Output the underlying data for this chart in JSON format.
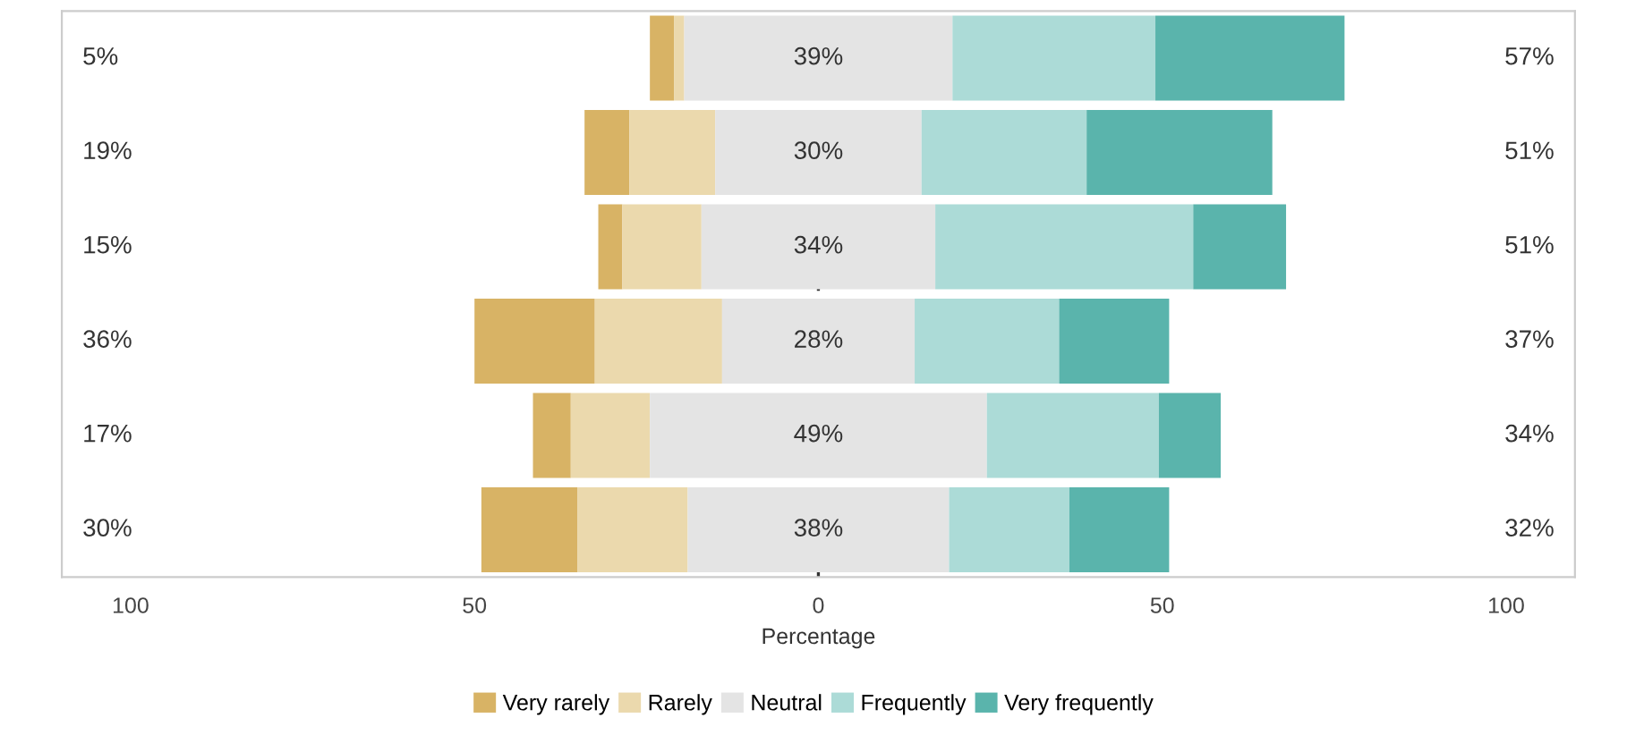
{
  "chart_data": {
    "type": "bar",
    "orientation": "horizontal",
    "xlabel": "Percentage",
    "categories": [
      null,
      null,
      null,
      null,
      null,
      null
    ],
    "series": [
      {
        "name": "Very rarely",
        "color": "#d8b365",
        "values": [
          3.5,
          6.5,
          3.5,
          17.5,
          5.5,
          14
        ],
        "base": [
          -24.5,
          -34,
          -32,
          -50,
          -41.5,
          -49
        ]
      },
      {
        "name": "Rarely",
        "color": "#ebd9ad",
        "values": [
          1.5,
          12.5,
          11.5,
          18.5,
          11.5,
          16
        ],
        "base": [
          -21,
          -27.5,
          -28.5,
          -32.5,
          -36,
          -35
        ]
      },
      {
        "name": "Neutral",
        "color": "#e4e4e4",
        "values": [
          39,
          30,
          34,
          28,
          49,
          38
        ],
        "base": [
          -19.5,
          -15,
          -17,
          -14,
          -24.5,
          -19
        ],
        "value_labels": [
          "39%",
          "30%",
          "34%",
          "28%",
          "49%",
          "38%"
        ]
      },
      {
        "name": "Frequently",
        "color": "#acdbd7",
        "values": [
          29.5,
          24,
          37.5,
          21,
          25,
          17.5
        ],
        "base": [
          19.5,
          15,
          17,
          14,
          24.5,
          19
        ]
      },
      {
        "name": "Very frequently",
        "color": "#5ab4ac",
        "values": [
          27.5,
          27,
          13.5,
          16,
          9,
          14.5
        ],
        "base": [
          49,
          39,
          54.5,
          35,
          49.5,
          36.5
        ]
      }
    ],
    "annotations": [
      "5%",
      "19%",
      "15%",
      "36%",
      "17%",
      "30%",
      "57%",
      "51%",
      "51%",
      "37%",
      "34%",
      "32%"
    ],
    "xlim": [
      -110,
      110
    ],
    "xticks": [
      {
        "value": -100,
        "label": "100"
      },
      {
        "value": -50,
        "label": "50"
      },
      0,
      50,
      100
    ],
    "ref_lines": [
      {
        "axis": "x",
        "value": 0,
        "color": "#333333",
        "line_style": "dashed"
      }
    ],
    "tick_labels": "x",
    "legend": "bottom"
  }
}
